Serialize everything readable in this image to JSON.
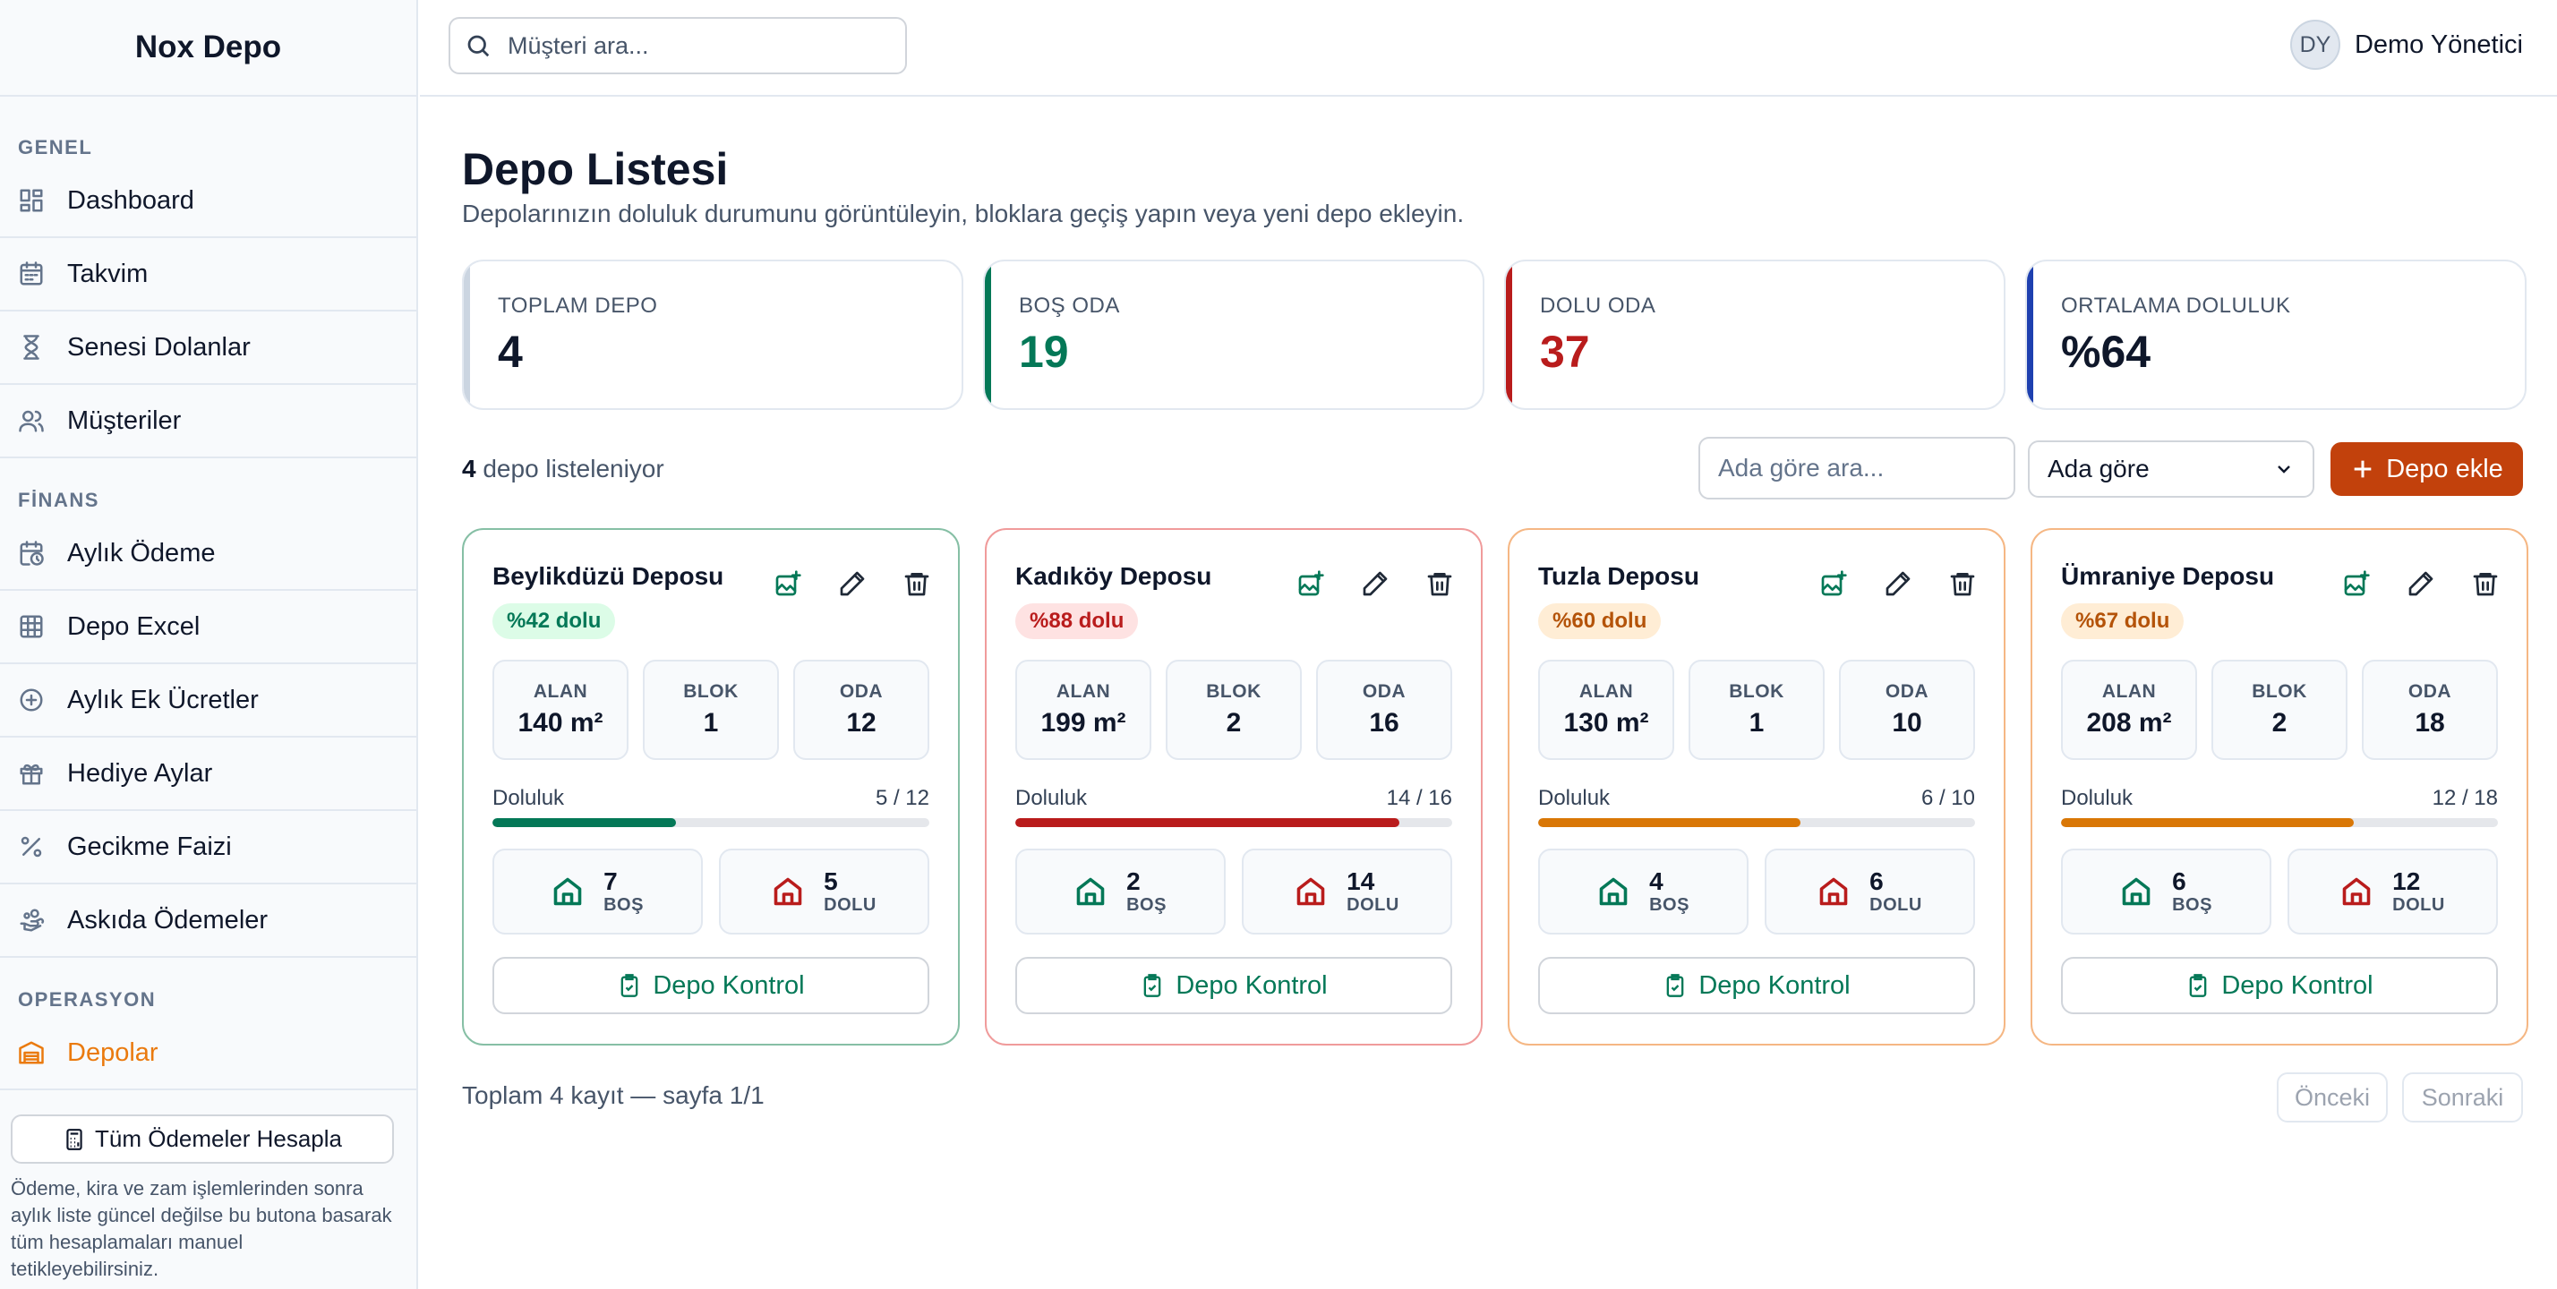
{
  "app": {
    "brand": "Nox Depo"
  },
  "sidebar": {
    "sections": [
      {
        "title": "GENEL",
        "items": [
          {
            "label": "Dashboard",
            "icon": "dashboard-icon"
          },
          {
            "label": "Takvim",
            "icon": "calendar-icon"
          },
          {
            "label": "Senesi Dolanlar",
            "icon": "hourglass-icon"
          },
          {
            "label": "Müşteriler",
            "icon": "users-icon"
          }
        ]
      },
      {
        "title": "FİNANS",
        "items": [
          {
            "label": "Aylık Ödeme",
            "icon": "calendar-clock-icon"
          },
          {
            "label": "Depo Excel",
            "icon": "table-icon"
          },
          {
            "label": "Aylık Ek Ücretler",
            "icon": "plus-circle-icon"
          },
          {
            "label": "Hediye Aylar",
            "icon": "gift-icon"
          },
          {
            "label": "Gecikme Faizi",
            "icon": "percent-icon"
          },
          {
            "label": "Askıda Ödemeler",
            "icon": "hand-coins-icon"
          }
        ]
      },
      {
        "title": "OPERASYON",
        "items": [
          {
            "label": "Depolar",
            "icon": "warehouse-icon",
            "active": true
          }
        ]
      }
    ],
    "calc_button": "Tüm Ödemeler Hesapla",
    "calc_note": "Ödeme, kira ve zam işlemlerinden sonra aylık liste güncel değilse bu butona basarak tüm hesaplamaları manuel tetikleyebilirsiniz."
  },
  "topbar": {
    "search_placeholder": "Müşteri ara...",
    "user_initials": "DY",
    "user_name": "Demo Yönetici"
  },
  "page": {
    "title": "Depo Listesi",
    "subtitle": "Depolarınızın doluluk durumunu görüntüleyin, bloklara geçiş yapın veya yeni depo ekleyin."
  },
  "stats": [
    {
      "label": "TOPLAM DEPO",
      "value": "4",
      "color": "#cbd5e1",
      "value_color": "#0f172a"
    },
    {
      "label": "BOŞ ODA",
      "value": "19",
      "color": "#047857",
      "value_color": "#047857"
    },
    {
      "label": "DOLU ODA",
      "value": "37",
      "color": "#b91c1c",
      "value_color": "#b91c1c"
    },
    {
      "label": "ORTALAMA DOLULUK",
      "value": "%64",
      "color": "#1e40af",
      "value_color": "#0f172a"
    }
  ],
  "toolbar": {
    "count": "4",
    "count_suffix": "depo listeleniyor",
    "filter_placeholder": "Ada göre ara...",
    "sort_value": "Ada göre",
    "add_label": "Depo ekle"
  },
  "labels": {
    "area": "ALAN",
    "block": "BLOK",
    "room": "ODA",
    "occupancy": "Doluluk",
    "empty": "BOŞ",
    "full": "DOLU",
    "control": "Depo Kontrol"
  },
  "warehouses": [
    {
      "name": "Beylikdüzü Deposu",
      "badge": "%42 dolu",
      "area": "140 m²",
      "blocks": "1",
      "rooms": "12",
      "ratio": "5 / 12",
      "fill": 0.42,
      "empty": "7",
      "full": "5",
      "border": "#86bfa5",
      "bar": "#047857",
      "badge_bg": "#dcfce7",
      "badge_fg": "#047857"
    },
    {
      "name": "Kadıköy Deposu",
      "badge": "%88 dolu",
      "area": "199 m²",
      "blocks": "2",
      "rooms": "16",
      "ratio": "14 / 16",
      "fill": 0.88,
      "empty": "2",
      "full": "14",
      "border": "#f09b9b",
      "bar": "#b91c1c",
      "badge_bg": "#fee2e2",
      "badge_fg": "#b91c1c"
    },
    {
      "name": "Tuzla Deposu",
      "badge": "%60 dolu",
      "area": "130 m²",
      "blocks": "1",
      "rooms": "10",
      "ratio": "6 / 10",
      "fill": 0.6,
      "empty": "4",
      "full": "6",
      "border": "#f5b784",
      "bar": "#d97706",
      "badge_bg": "#ffedd5",
      "badge_fg": "#b45309"
    },
    {
      "name": "Ümraniye Deposu",
      "badge": "%67 dolu",
      "area": "208 m²",
      "blocks": "2",
      "rooms": "18",
      "ratio": "12 / 18",
      "fill": 0.67,
      "empty": "6",
      "full": "12",
      "border": "#f5b784",
      "bar": "#d97706",
      "badge_bg": "#ffedd5",
      "badge_fg": "#b45309"
    }
  ],
  "footer": {
    "summary": "Toplam 4 kayıt — sayfa 1/1",
    "prev": "Önceki",
    "next": "Sonraki"
  }
}
